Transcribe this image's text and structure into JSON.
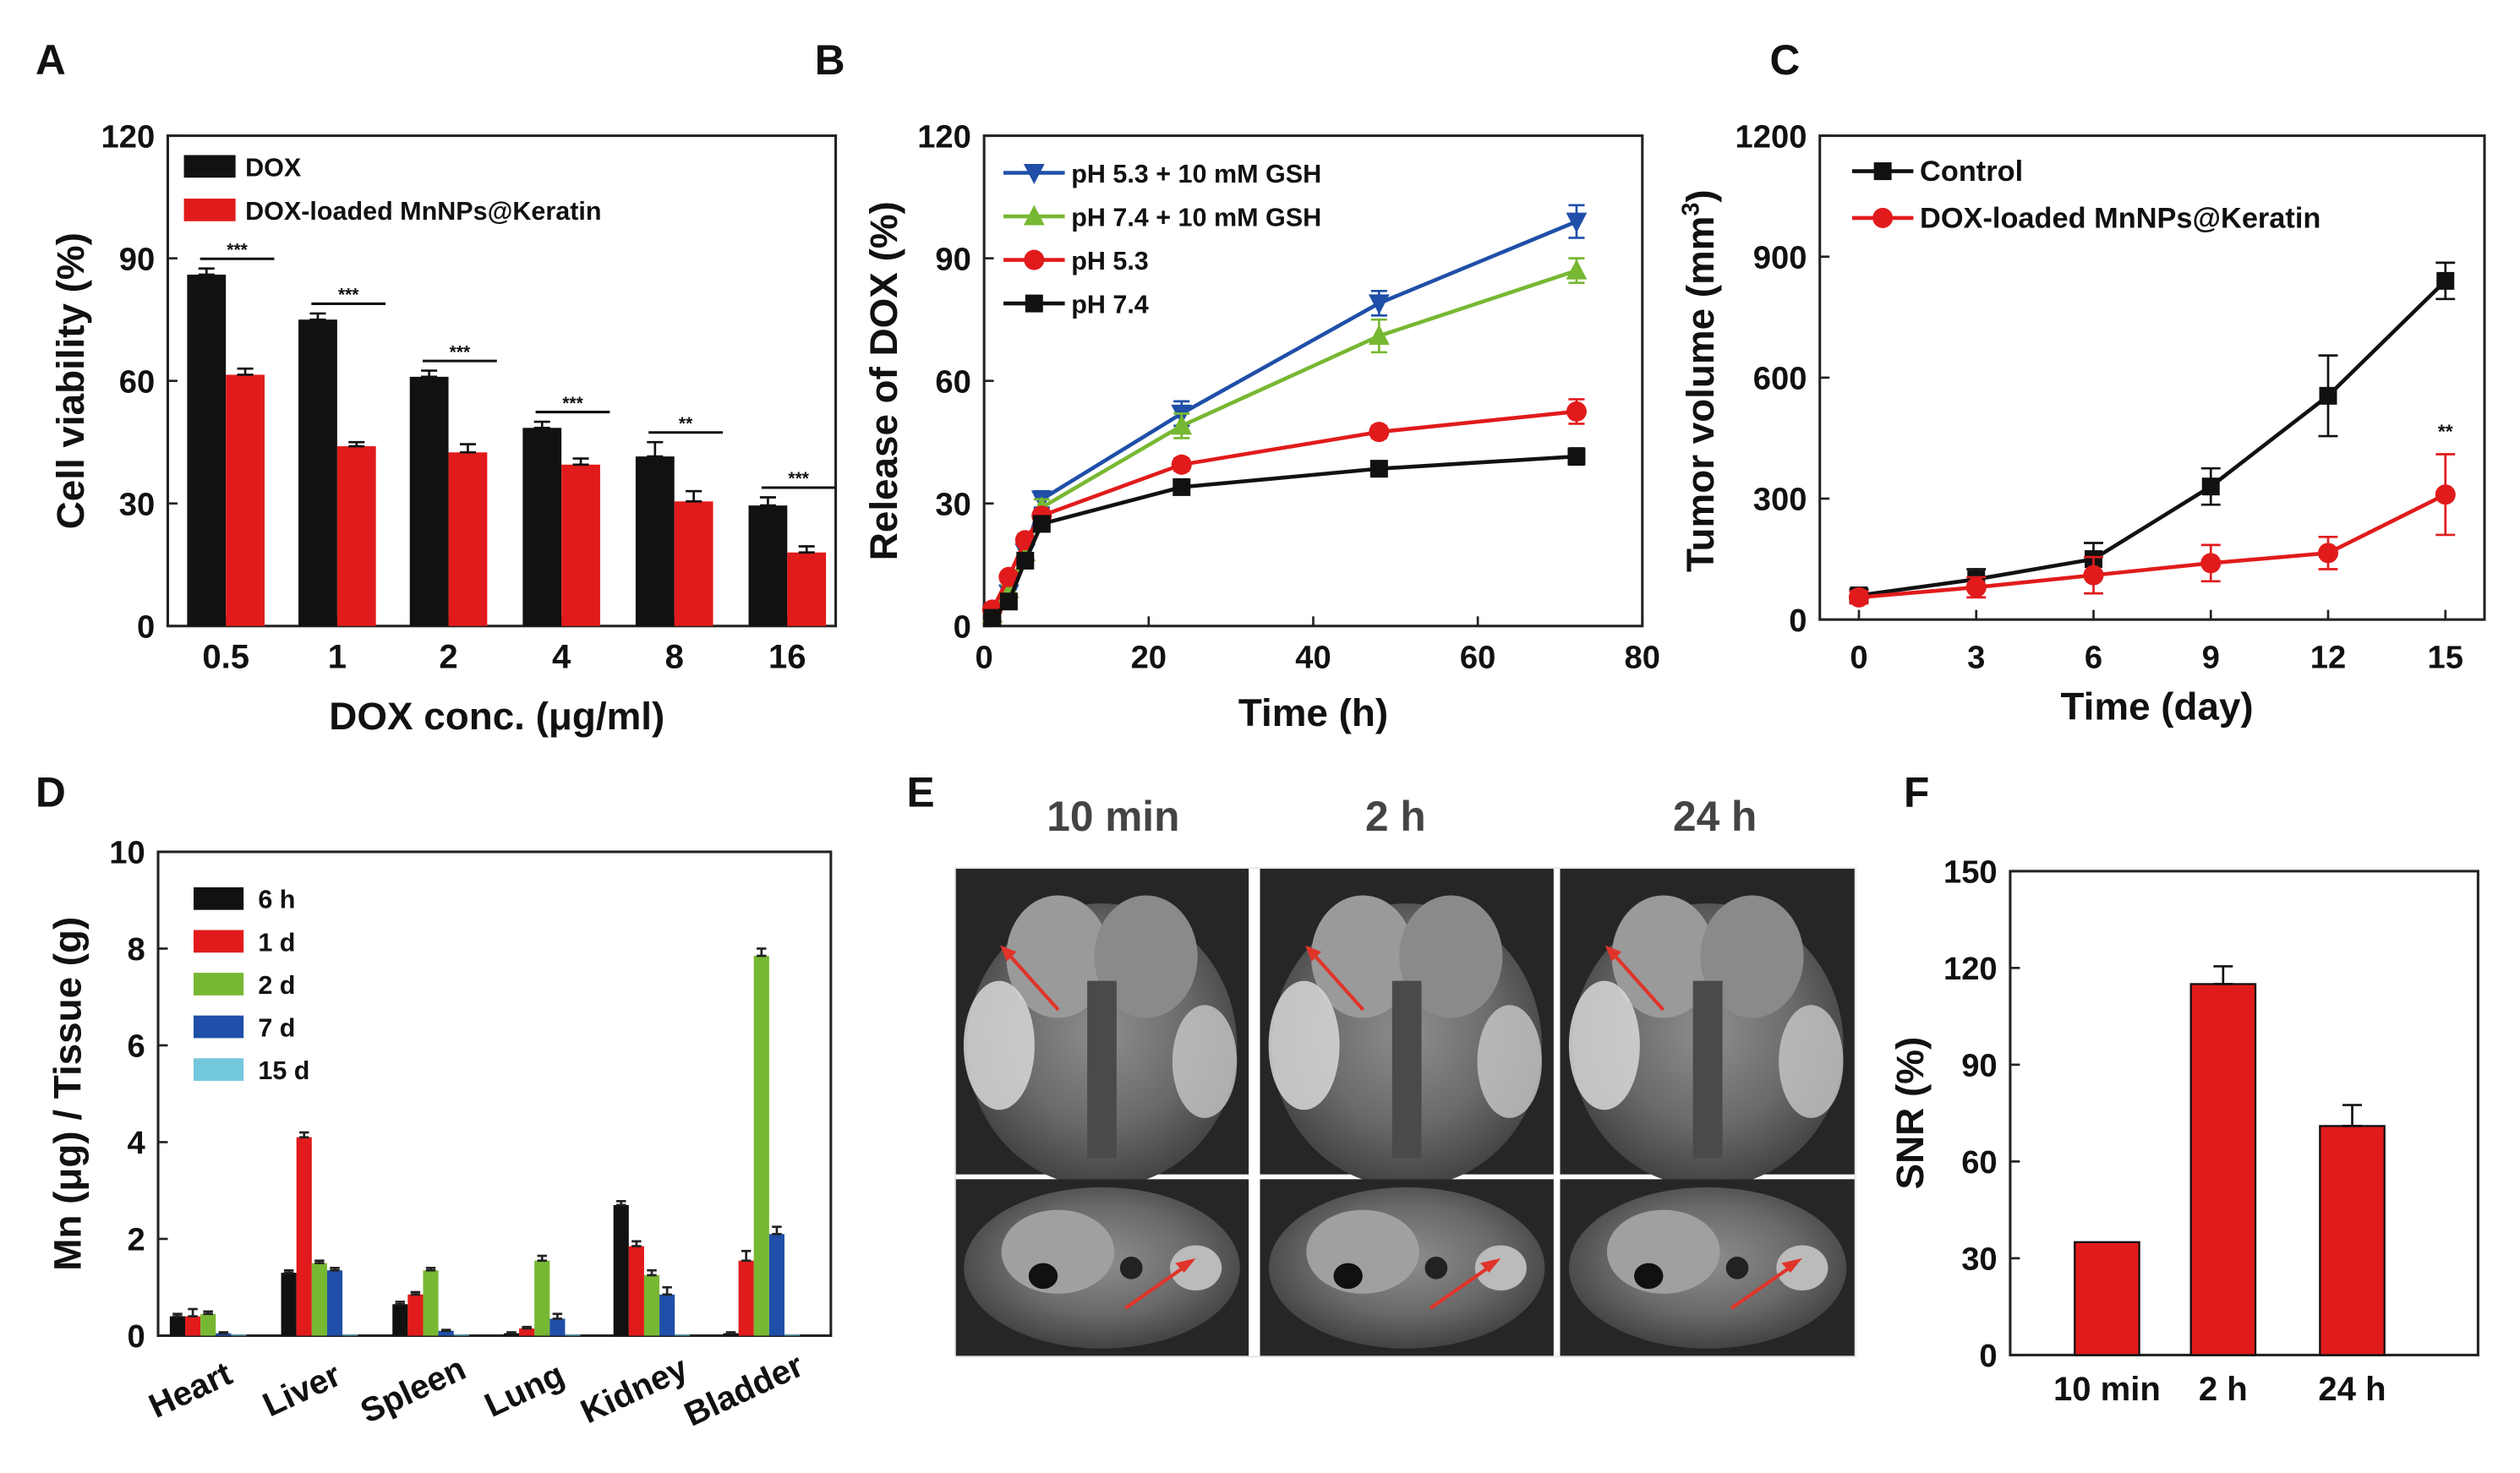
{
  "figure": {
    "panels": [
      "A",
      "B",
      "C",
      "D",
      "E",
      "F"
    ],
    "colors": {
      "black": "#111111",
      "red": "#e11b1b",
      "green": "#77b832",
      "blue": "#1f4fa8",
      "cyan": "#73c8dc"
    }
  },
  "chart_data": [
    {
      "panel": "A",
      "type": "bar",
      "categories": [
        "0.5",
        "1",
        "2",
        "4",
        "8",
        "16"
      ],
      "series": [
        {
          "name": "DOX",
          "color": "#111111",
          "values": [
            86,
            75,
            61,
            48.5,
            41.5,
            29.5
          ],
          "errors": [
            1.5,
            1.5,
            1.5,
            1.5,
            3.5,
            2
          ]
        },
        {
          "name": "DOX-loaded MnNPs@Keratin",
          "color": "#e11b1b",
          "values": [
            61.5,
            44,
            42.5,
            39.5,
            30.5,
            18
          ],
          "errors": [
            1.5,
            1,
            2,
            1.5,
            2.5,
            1.5
          ]
        }
      ],
      "significance": [
        "***",
        "***",
        "***",
        "***",
        "**",
        "***"
      ],
      "xlabel": "DOX conc. (μg/ml)",
      "ylabel": "Cell viability (%)",
      "ylim": [
        0,
        120
      ],
      "yticks": [
        "0",
        "30",
        "60",
        "90",
        "120"
      ],
      "legend_position": "top-left"
    },
    {
      "panel": "B",
      "type": "line",
      "xlim": [
        0,
        80
      ],
      "ylim": [
        0,
        120
      ],
      "xticks": [
        "0",
        "20",
        "40",
        "60",
        "80"
      ],
      "yticks": [
        "0",
        "30",
        "60",
        "90",
        "120"
      ],
      "xlabel": "Time (h)",
      "ylabel": "Release of DOX (%)",
      "legend_position": "top-left",
      "series": [
        {
          "name": "pH 5.3 + 10 mM GSH",
          "color": "#1f4fa8",
          "marker": "triangle-down",
          "x": [
            1,
            3,
            5,
            7,
            24,
            48,
            72
          ],
          "y": [
            3,
            8,
            18,
            31,
            52,
            79,
            99
          ],
          "errors": [
            1,
            1,
            2,
            2,
            3,
            3,
            4
          ]
        },
        {
          "name": "pH 7.4 + 10 mM GSH",
          "color": "#77b832",
          "marker": "triangle-up",
          "x": [
            1,
            3,
            5,
            7,
            24,
            48,
            72
          ],
          "y": [
            3,
            9,
            18,
            29,
            49,
            71,
            87
          ],
          "errors": [
            1,
            1,
            2,
            2,
            3,
            4,
            3
          ]
        },
        {
          "name": "pH 5.3",
          "color": "#e11b1b",
          "marker": "circle",
          "x": [
            1,
            3,
            5,
            7,
            24,
            48,
            72
          ],
          "y": [
            4,
            12,
            21,
            27,
            39.5,
            47.5,
            52.5
          ],
          "errors": [
            1,
            1,
            1.5,
            1.5,
            1.5,
            1.5,
            3
          ]
        },
        {
          "name": "pH 7.4",
          "color": "#111111",
          "marker": "square",
          "x": [
            1,
            3,
            5,
            7,
            24,
            48,
            72
          ],
          "y": [
            2,
            6,
            16,
            25,
            34,
            38.5,
            41.5
          ],
          "errors": [
            1,
            1,
            1.5,
            1.5,
            1.5,
            1.5,
            2
          ]
        }
      ]
    },
    {
      "panel": "C",
      "type": "line",
      "xlim": [
        -1,
        16
      ],
      "ylim": [
        0,
        1200
      ],
      "xticks": [
        "0",
        "3",
        "6",
        "9",
        "12",
        "15"
      ],
      "yticks": [
        "0",
        "300",
        "600",
        "900",
        "1200"
      ],
      "xlabel": "Time (day)",
      "ylabel": "Tumor volume (mm",
      "ylabel_superscript": "3",
      "ylabel_suffix": ")",
      "legend_position": "top-left",
      "annotation": "**",
      "series": [
        {
          "name": "Control",
          "color": "#111111",
          "marker": "square",
          "x": [
            0,
            3,
            6,
            9,
            12,
            15
          ],
          "y": [
            60,
            100,
            150,
            330,
            555,
            840
          ],
          "errors": [
            15,
            25,
            40,
            45,
            100,
            45
          ]
        },
        {
          "name": "DOX-loaded MnNPs@Keratin",
          "color": "#e11b1b",
          "marker": "circle",
          "x": [
            0,
            3,
            6,
            9,
            12,
            15
          ],
          "y": [
            55,
            80,
            110,
            140,
            165,
            310
          ],
          "errors": [
            15,
            25,
            45,
            45,
            40,
            100
          ]
        }
      ]
    },
    {
      "panel": "D",
      "type": "bar",
      "categories": [
        "Heart",
        "Liver",
        "Spleen",
        "Lung",
        "Kidney",
        "Bladder"
      ],
      "series": [
        {
          "name": "6  h",
          "color": "#111111",
          "values": [
            0.4,
            1.3,
            0.65,
            0.05,
            2.7,
            0.05
          ],
          "errors": [
            0.05,
            0.05,
            0.05,
            0.02,
            0.08,
            0.02
          ]
        },
        {
          "name": "1  d",
          "color": "#e11b1b",
          "values": [
            0.4,
            4.1,
            0.85,
            0.15,
            1.85,
            1.55
          ],
          "errors": [
            0.15,
            0.1,
            0.05,
            0.03,
            0.1,
            0.2
          ]
        },
        {
          "name": "2  d",
          "color": "#77b832",
          "values": [
            0.45,
            1.5,
            1.35,
            1.55,
            1.25,
            7.85
          ],
          "errors": [
            0.05,
            0.05,
            0.05,
            0.1,
            0.1,
            0.15
          ]
        },
        {
          "name": "7  d",
          "color": "#1f4fa8",
          "values": [
            0.05,
            1.35,
            0.1,
            0.35,
            0.85,
            2.1
          ],
          "errors": [
            0.02,
            0.05,
            0.02,
            0.1,
            0.15,
            0.15
          ]
        },
        {
          "name": "15 d",
          "color": "#73c8dc",
          "values": [
            0.02,
            0.02,
            0.02,
            0.02,
            0.02,
            0.02
          ],
          "errors": [
            0,
            0,
            0,
            0,
            0,
            0
          ]
        }
      ],
      "ylabel": "Mn (μg) / Tissue (g)",
      "ylim": [
        0,
        10
      ],
      "yticks": [
        "0",
        "2",
        "4",
        "6",
        "8",
        "10"
      ],
      "legend_position": "top-left"
    },
    {
      "panel": "E",
      "type": "image-grid",
      "columns": [
        "10 min",
        "2 h",
        "24 h"
      ],
      "rows": [
        "coronal",
        "axial"
      ]
    },
    {
      "panel": "F",
      "type": "bar",
      "categories": [
        "10 min",
        "2 h",
        "24 h"
      ],
      "values": [
        35,
        115,
        71
      ],
      "errors": [
        0,
        5.5,
        6.5
      ],
      "color": "#e11b1b",
      "ylabel": "SNR (%)",
      "ylim": [
        0,
        150
      ],
      "yticks": [
        "0",
        "30",
        "60",
        "90",
        "120",
        "150"
      ]
    }
  ]
}
